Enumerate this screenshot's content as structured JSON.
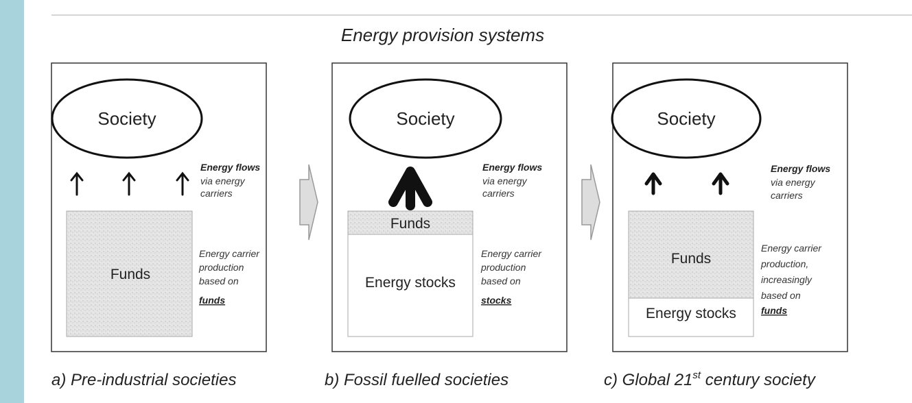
{
  "title": "Energy provision systems",
  "panels": [
    {
      "society": "Society",
      "flows_title": "Energy flows",
      "flows_lines": [
        "via energy",
        "carriers"
      ],
      "production_lines": [
        "Energy carrier",
        "production",
        "based on"
      ],
      "production_emphasis": "funds",
      "boxes": [
        "Funds"
      ],
      "caption": [
        "a) Pre-industrial societies"
      ]
    },
    {
      "society": "Society",
      "flows_title": "Energy flows",
      "flows_lines": [
        "via energy",
        "carriers"
      ],
      "production_lines": [
        "Energy carrier",
        "production",
        "based on"
      ],
      "production_emphasis": "stocks",
      "boxes": [
        "Funds",
        "Energy stocks"
      ],
      "caption": [
        "b) Fossil fuelled societies"
      ]
    },
    {
      "society": "Society",
      "flows_title": "Energy flows",
      "flows_lines": [
        "via energy",
        "carriers"
      ],
      "production_lines": [
        "Energy carrier",
        "production,",
        "increasingly",
        "based on"
      ],
      "production_emphasis": "funds",
      "boxes": [
        "Funds",
        "Energy stocks"
      ],
      "caption": [
        "c) Global 21",
        "st",
        " century society"
      ]
    }
  ]
}
